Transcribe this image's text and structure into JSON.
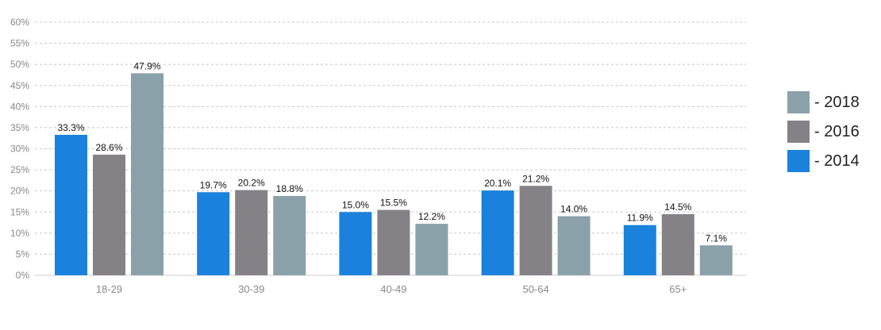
{
  "chart_data": {
    "type": "bar",
    "categories": [
      "18-29",
      "30-39",
      "40-49",
      "50-64",
      "65+"
    ],
    "series": [
      {
        "name": "2014",
        "color": "#1a82dc",
        "values": [
          33.3,
          19.7,
          15.0,
          20.1,
          11.9
        ],
        "labels": [
          "33.3%",
          "19.7%",
          "15.0%",
          "20.1%",
          "11.9%"
        ]
      },
      {
        "name": "2016",
        "color": "#858287",
        "values": [
          28.6,
          20.2,
          15.5,
          21.2,
          14.5
        ],
        "labels": [
          "28.6%",
          "20.2%",
          "15.5%",
          "21.2%",
          "14.5%"
        ]
      },
      {
        "name": "2018",
        "color": "#8aa1aa",
        "values": [
          47.9,
          18.8,
          12.2,
          14.0,
          7.1
        ],
        "labels": [
          "47.9%",
          "18.8%",
          "12.2%",
          "14.0%",
          "7.1%"
        ]
      }
    ],
    "y_ticks": [
      0,
      5,
      10,
      15,
      20,
      25,
      30,
      35,
      40,
      45,
      50,
      55,
      60
    ],
    "y_tick_labels": [
      "0%",
      "5%",
      "10%",
      "15%",
      "20%",
      "25%",
      "30%",
      "35%",
      "40%",
      "45%",
      "50%",
      "55%",
      "60%"
    ],
    "ylim": [
      0,
      60
    ],
    "grid": true,
    "legend_position": "right",
    "title": "",
    "xlabel": "",
    "ylabel": ""
  },
  "legend": {
    "items": [
      {
        "label": "- 2018",
        "color": "#8aa1aa"
      },
      {
        "label": "- 2016",
        "color": "#858287"
      },
      {
        "label": "- 2014",
        "color": "#1a82dc"
      }
    ]
  }
}
